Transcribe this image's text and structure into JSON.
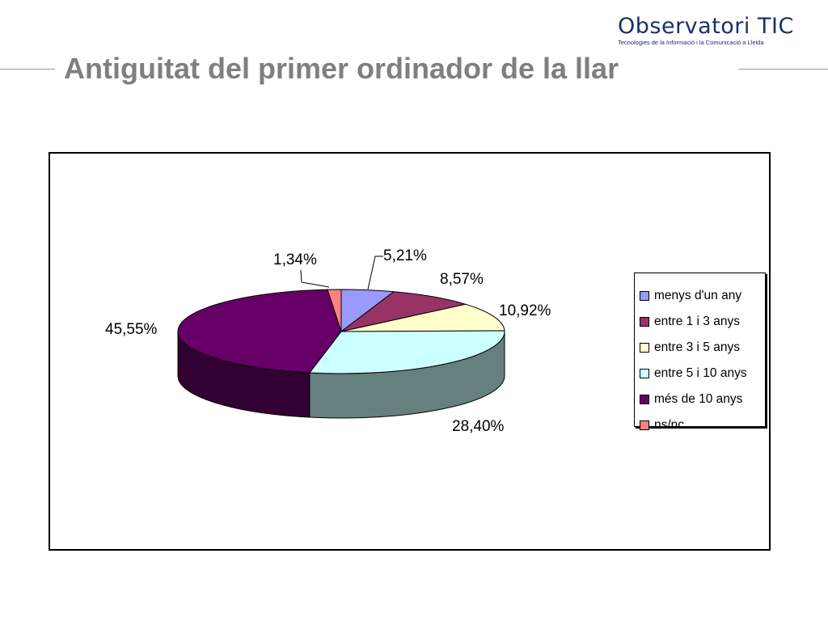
{
  "logo": {
    "name": "Observatori TIC",
    "tagline": "Tecnologies de la Informació i la Comunicació a Lleida"
  },
  "slide_title": "Antiguitat del primer ordinador de la llar",
  "chart_data": {
    "type": "pie",
    "title": "",
    "legend_position": "right",
    "categories": [
      "menys d'un any",
      "entre 1 i 3 anys",
      "entre 3 i 5 anys",
      "entre 5 i 10 anys",
      "més de 10 anys",
      "ns/nc"
    ],
    "values": [
      5.21,
      8.57,
      10.92,
      28.4,
      45.55,
      1.34
    ],
    "labels": [
      "5,21%",
      "8,57%",
      "10,92%",
      "28,40%",
      "45,55%",
      "1,34%"
    ],
    "colors": [
      "#9999ff",
      "#993366",
      "#ffffcc",
      "#ccffff",
      "#660066",
      "#ff8080"
    ]
  }
}
